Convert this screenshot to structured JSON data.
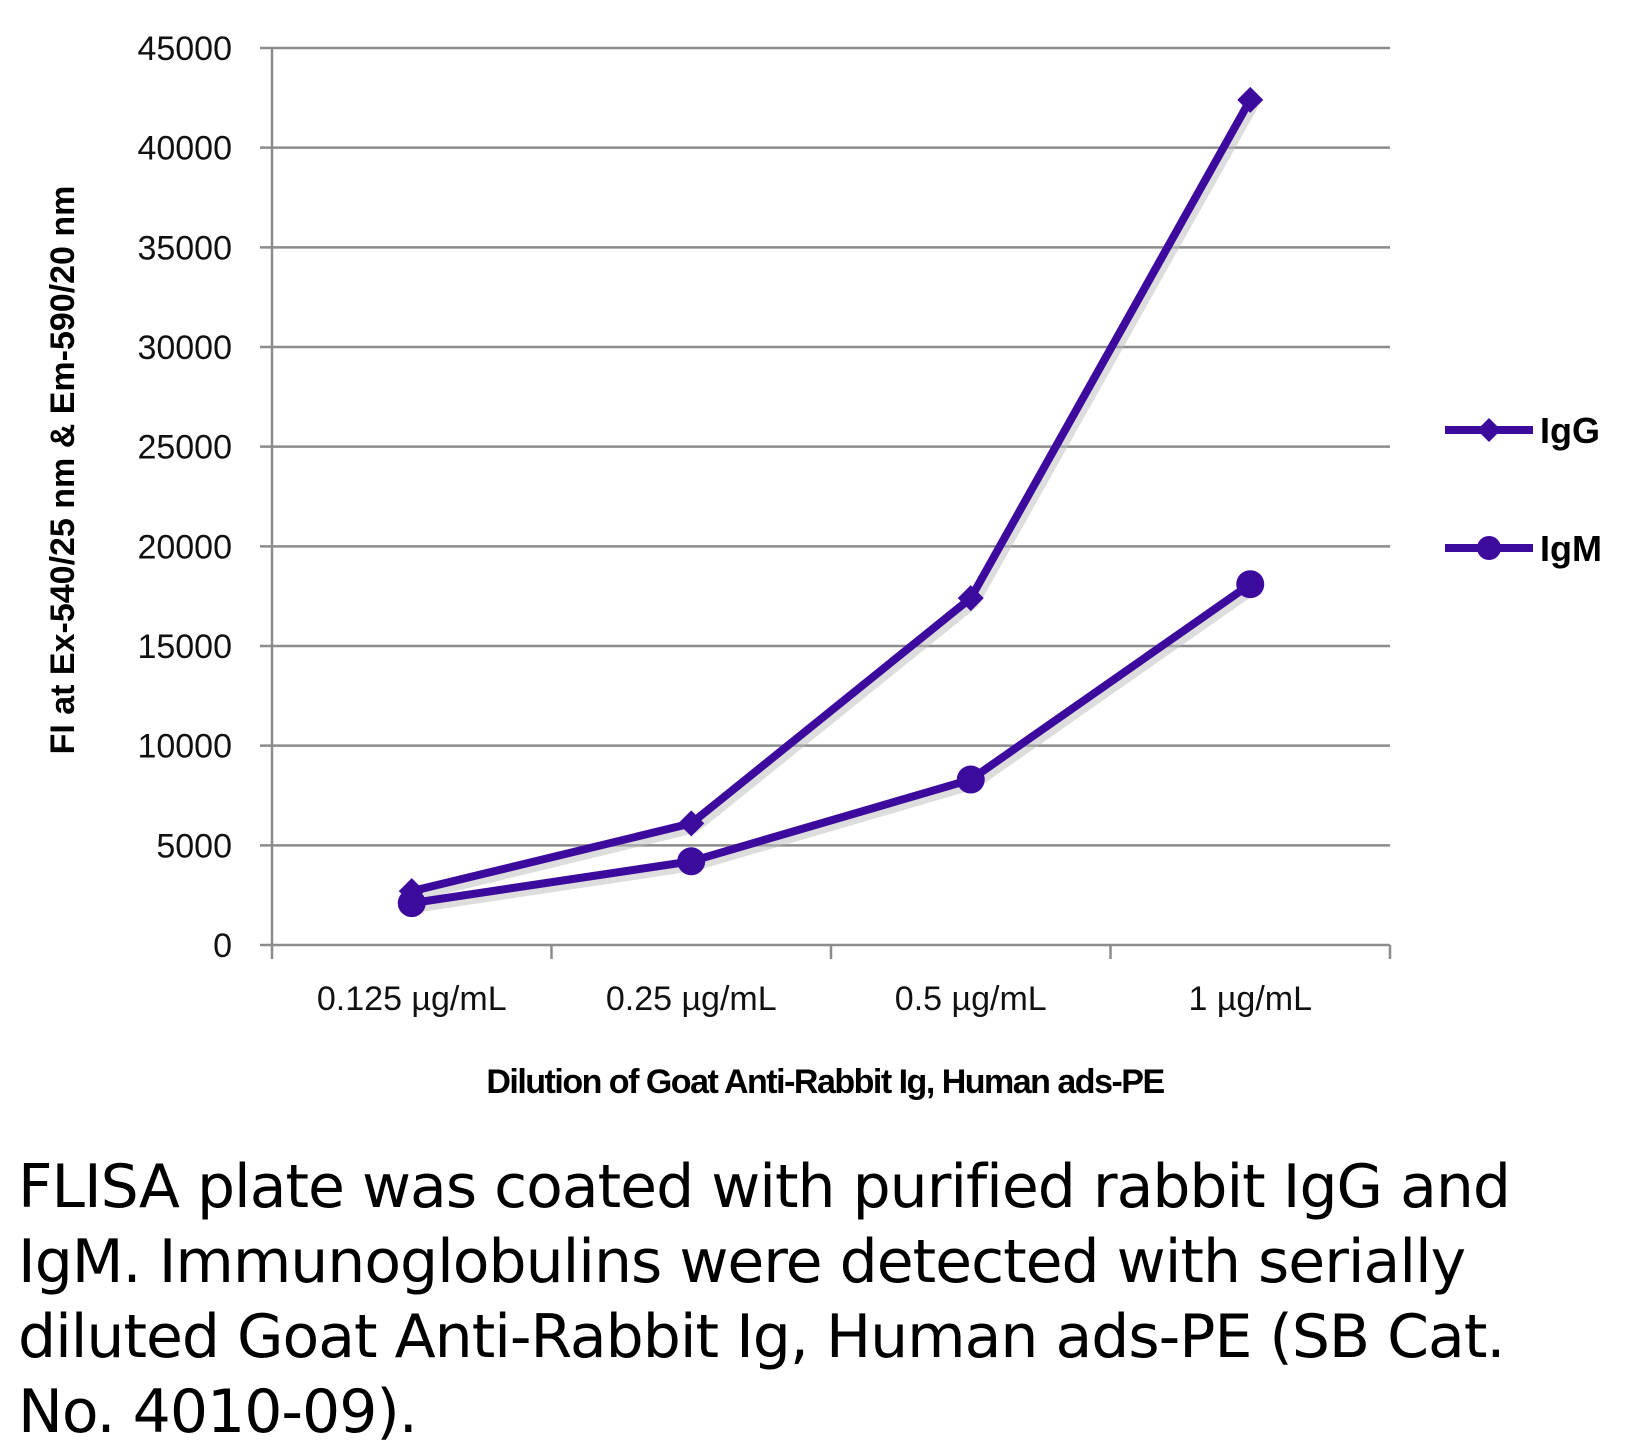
{
  "chart_data": {
    "type": "line",
    "title": "",
    "xlabel": "Dilution of Goat Anti-Rabbit Ig, Human ads-PE",
    "ylabel": "FI at Ex-540/25 nm & Em-590/20 nm",
    "categories": [
      "0.125 µg/mL",
      "0.25 µg/mL",
      "0.5 µg/mL",
      "1 µg/mL"
    ],
    "ylim": [
      0,
      45000
    ],
    "yticks": [
      0,
      5000,
      10000,
      15000,
      20000,
      25000,
      30000,
      35000,
      40000,
      45000
    ],
    "grid": true,
    "legend_position": "right",
    "series": [
      {
        "name": "IgG",
        "marker": "diamond",
        "color": "#3d0a9e",
        "values": [
          2700,
          6100,
          17400,
          42400
        ]
      },
      {
        "name": "IgM",
        "marker": "circle",
        "color": "#3d0a9e",
        "values": [
          2100,
          4200,
          8300,
          18100
        ]
      }
    ]
  },
  "caption": "FLISA plate was coated with purified rabbit IgG and IgM.  Immunoglobulins were detected with serially diluted Goat Anti-Rabbit Ig, Human ads-PE (SB Cat. No. 4010-09)."
}
